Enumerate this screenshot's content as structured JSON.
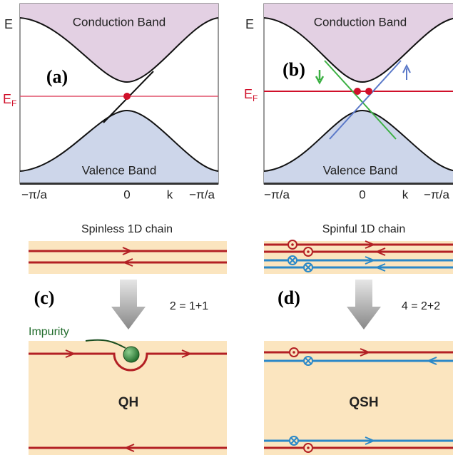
{
  "panel_a": {
    "label": "(a)",
    "energy": "E",
    "fermi": "E",
    "fermi_sub": "F",
    "conduction": "Conduction Band",
    "valence": "Valence Band",
    "ticks": [
      "−π/a",
      "0",
      "k",
      "−π/a"
    ]
  },
  "panel_b": {
    "label": "(b)",
    "energy": "E",
    "fermi": "E",
    "fermi_sub": "F",
    "conduction": "Conduction Band",
    "valence": "Valence Band",
    "ticks": [
      "−π/a",
      "0",
      "k",
      "−π/a"
    ]
  },
  "panel_c": {
    "title": "Spinless 1D chain",
    "label": "(c)",
    "equation": "2 = 1+1",
    "impurity": "Impurity",
    "state": "QH"
  },
  "panel_d": {
    "title": "Spinful 1D chain",
    "label": "(d)",
    "equation": "4 = 2+2",
    "state": "QSH"
  }
}
